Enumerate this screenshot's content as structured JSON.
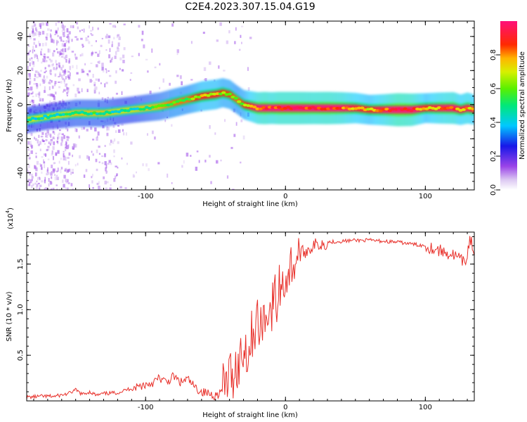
{
  "title": "C2E4.2023.307.15.04.G19",
  "colors": {
    "snr_line": "#e8302a",
    "axis": "#000000"
  },
  "chart_data": [
    {
      "type": "heatmap",
      "xlabel": "Height of straight line (km)",
      "ylabel": "Frequency (Hz)",
      "xlim": [
        -185,
        135
      ],
      "ylim": [
        -50,
        49
      ],
      "x_ticks": [
        -100,
        0,
        100
      ],
      "x_tick_labels": [
        "-100",
        "0",
        "100"
      ],
      "y_ticks": [
        -40,
        -20,
        0,
        20,
        40
      ],
      "y_tick_labels": [
        "-40",
        "-20",
        "0",
        "20",
        "40"
      ],
      "colorbar": {
        "label": "Normalized spectral amplitude",
        "range": [
          0,
          1
        ],
        "ticks": [
          0.0,
          0.2,
          0.4,
          0.6,
          0.8
        ],
        "tick_labels": [
          "0.0",
          "0.2",
          "0.4",
          "0.6",
          "0.8"
        ],
        "colormap": "rainbow (white-purple-blue-cyan-green-yellow-red-magenta)"
      },
      "ridge": {
        "x": [
          -185,
          -170,
          -160,
          -150,
          -140,
          -130,
          -120,
          -110,
          -100,
          -90,
          -80,
          -70,
          -60,
          -50,
          -45,
          -40,
          -35,
          -30,
          -25,
          -20,
          -15,
          -10,
          -5,
          0,
          10,
          20,
          30,
          40,
          50,
          60,
          70,
          80,
          90,
          100,
          110,
          120,
          125,
          130,
          135
        ],
        "y": [
          -9,
          -7,
          -6,
          -5,
          -5,
          -5,
          -4,
          -3,
          -2,
          -1,
          1,
          3,
          5,
          6,
          7,
          6,
          3,
          0,
          -1,
          -2,
          -2,
          -2,
          -2,
          -2,
          -2,
          -2,
          -2,
          -2,
          -2,
          -3,
          -3,
          -3,
          -3,
          -2,
          -2,
          -2,
          -3,
          -2,
          -3
        ],
        "amplitude": [
          0.45,
          0.4,
          0.45,
          0.5,
          0.5,
          0.5,
          0.45,
          0.45,
          0.5,
          0.55,
          0.6,
          0.6,
          0.7,
          0.7,
          0.65,
          0.65,
          0.6,
          0.65,
          0.75,
          0.85,
          0.9,
          0.85,
          0.9,
          0.9,
          0.9,
          0.88,
          0.9,
          0.85,
          0.75,
          0.7,
          0.8,
          0.95,
          0.9,
          0.7,
          0.8,
          0.85,
          0.75,
          0.8,
          0.7
        ]
      }
    },
    {
      "type": "line",
      "xlabel": "Height of straight line (km)",
      "ylabel": "SNR (10 * v/v)",
      "y_multiplier": "(x10",
      "y_multiplier_exp": "4",
      "y_multiplier_close": ")",
      "xlim": [
        -185,
        135
      ],
      "ylim": [
        0,
        1.85
      ],
      "x_ticks": [
        -100,
        0,
        100
      ],
      "x_tick_labels": [
        "-100",
        "0",
        "100"
      ],
      "y_ticks": [
        0.5,
        1.0,
        1.5
      ],
      "y_tick_labels": [
        "0.5",
        "1.0",
        "1.5"
      ],
      "series": [
        {
          "color": "#e8302a",
          "x": [
            -185,
            -175,
            -165,
            -155,
            -150,
            -145,
            -140,
            -135,
            -130,
            -120,
            -110,
            -100,
            -95,
            -90,
            -85,
            -80,
            -75,
            -70,
            -65,
            -60,
            -55,
            -50,
            -46,
            -42,
            -40,
            -38,
            -36,
            -34,
            -32,
            -30,
            -28,
            -26,
            -24,
            -22,
            -20,
            -18,
            -16,
            -14,
            -12,
            -10,
            -8,
            -6,
            -4,
            -2,
            0,
            5,
            10,
            15,
            20,
            25,
            30,
            40,
            50,
            60,
            70,
            80,
            90,
            100,
            110,
            115,
            120,
            125,
            128,
            130,
            132,
            135
          ],
          "y": [
            0.04,
            0.05,
            0.05,
            0.08,
            0.12,
            0.07,
            0.1,
            0.06,
            0.08,
            0.09,
            0.14,
            0.18,
            0.2,
            0.25,
            0.2,
            0.27,
            0.2,
            0.24,
            0.15,
            0.1,
            0.08,
            0.06,
            0.1,
            0.2,
            0.3,
            0.25,
            0.4,
            0.35,
            0.5,
            0.55,
            0.6,
            0.5,
            0.75,
            0.8,
            0.9,
            0.7,
            1.0,
            0.85,
            1.1,
            0.95,
            1.2,
            1.0,
            1.3,
            1.25,
            1.35,
            1.5,
            1.6,
            1.65,
            1.7,
            1.72,
            1.74,
            1.75,
            1.76,
            1.76,
            1.75,
            1.74,
            1.72,
            1.7,
            1.65,
            1.62,
            1.6,
            1.55,
            1.5,
            1.6,
            1.8,
            1.6
          ]
        }
      ]
    }
  ]
}
